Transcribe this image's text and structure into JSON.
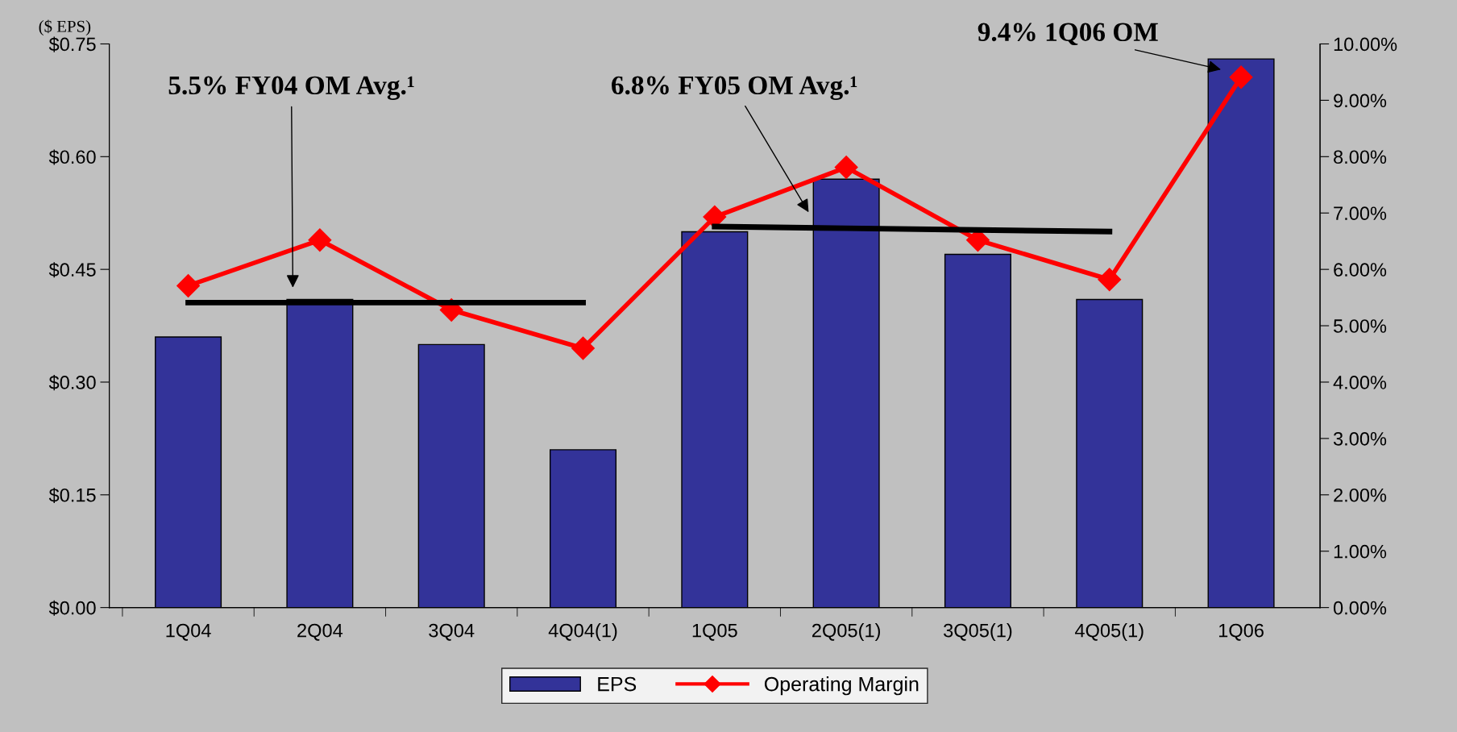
{
  "chart_data": {
    "type": "bar",
    "ylabel": "($ EPS)",
    "categories": [
      "1Q04",
      "2Q04",
      "3Q04",
      "4Q04(1)",
      "1Q05",
      "2Q05(1)",
      "3Q05(1)",
      "4Q05(1)",
      "1Q06"
    ],
    "series": [
      {
        "name": "EPS",
        "color": "#333399",
        "values": [
          0.36,
          0.41,
          0.35,
          0.21,
          0.5,
          0.57,
          0.47,
          0.41,
          0.73
        ]
      },
      {
        "name": "Operating Margin",
        "type": "line",
        "axis": "y2",
        "color": "#ff0000",
        "marker": "diamond",
        "values": [
          5.71,
          6.52,
          5.28,
          4.6,
          6.93,
          7.81,
          6.52,
          5.82,
          9.41
        ]
      },
      {
        "type": "line",
        "axis": "y2",
        "color": "#000000",
        "marker": "none",
        "values": [
          5.41,
          5.41,
          5.41,
          5.41,
          null,
          null,
          null,
          null,
          null
        ]
      },
      {
        "type": "line",
        "axis": "y2",
        "color": "#000000",
        "marker": "none",
        "values": [
          null,
          null,
          null,
          null,
          6.76,
          6.73,
          6.7,
          6.67,
          null
        ]
      }
    ],
    "ylim": [
      0,
      0.75
    ],
    "yticks": [
      {
        "value": 0,
        "label": "$0.00"
      },
      {
        "value": 0.15,
        "label": "$0.15"
      },
      {
        "value": 0.3,
        "label": "$0.30"
      },
      {
        "value": 0.45,
        "label": "$0.45"
      },
      {
        "value": 0.6,
        "label": "$0.60"
      },
      {
        "value": 0.75,
        "label": "$0.75"
      }
    ],
    "y2lim": [
      0,
      10
    ],
    "y2ticks": [
      {
        "value": 0,
        "label": "0.00%"
      },
      {
        "value": 1,
        "label": "1.00%"
      },
      {
        "value": 2,
        "label": "2.00%"
      },
      {
        "value": 3,
        "label": "3.00%"
      },
      {
        "value": 4,
        "label": "4.00%"
      },
      {
        "value": 5,
        "label": "5.00%"
      },
      {
        "value": 6,
        "label": "6.00%"
      },
      {
        "value": 7,
        "label": "7.00%"
      },
      {
        "value": 8,
        "label": "8.00%"
      },
      {
        "value": 9,
        "label": "9.00%"
      },
      {
        "value": 10,
        "label": "10.00%"
      }
    ],
    "annotations": [
      "5.5% FY04 OM Avg.¹",
      "6.8% FY05 OM Avg.¹",
      "9.4% 1Q06 OM"
    ],
    "legend": "bottom",
    "grid": false
  }
}
